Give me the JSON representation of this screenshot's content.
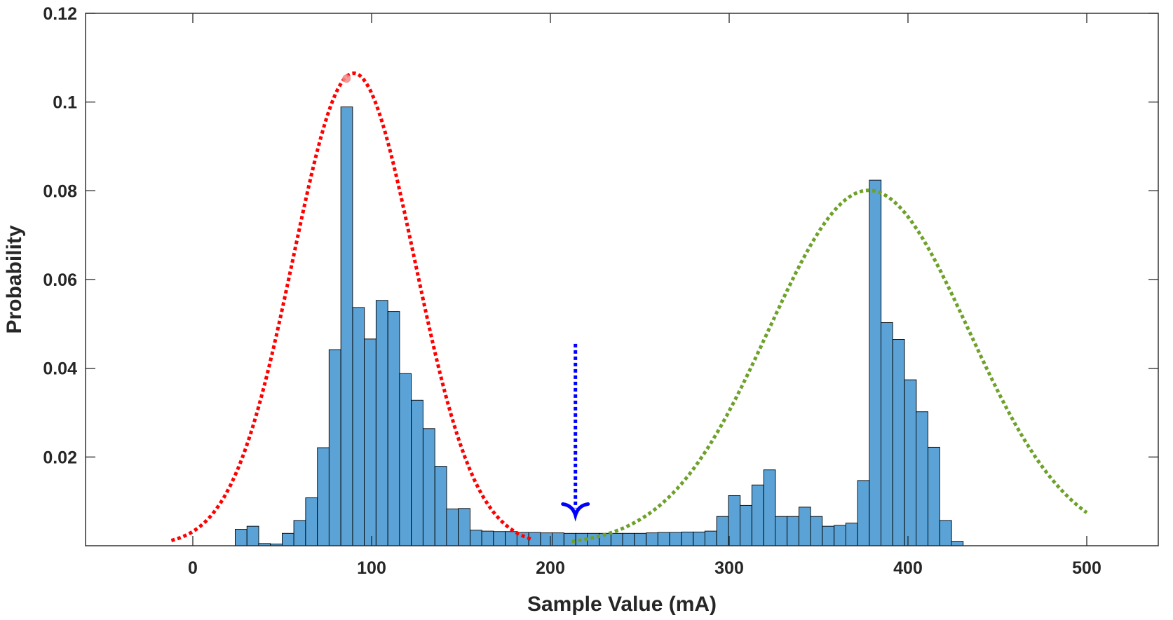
{
  "chart_data": {
    "type": "bar",
    "title": "",
    "xlabel": "Sample Value (mA)",
    "ylabel": "Probability",
    "xlim": [
      -60,
      540
    ],
    "ylim": [
      0,
      0.12
    ],
    "grid": false,
    "xticks": [
      0,
      100,
      200,
      300,
      400,
      500
    ],
    "xtick_labels": [
      "0",
      "100",
      "200",
      "300",
      "400",
      "500"
    ],
    "yticks": [
      0.02,
      0.04,
      0.06,
      0.08,
      0.1,
      0.12
    ],
    "ytick_labels": [
      "0.02",
      "0.04",
      "0.06",
      "0.08",
      "0.1",
      "0.12"
    ],
    "histogram": {
      "name": "Sample histogram",
      "color": "#5ba3d6",
      "edge_color": "#000000",
      "bin_width": 6.57,
      "bin_starts": [
        23.7,
        30.3,
        36.8,
        43.4,
        50.0,
        56.5,
        63.1,
        69.7,
        76.2,
        82.8,
        89.4,
        95.9,
        102.5,
        109.1,
        115.6,
        122.2,
        128.8,
        135.4,
        141.9,
        148.5,
        155.1,
        161.6,
        168.2,
        174.8,
        181.3,
        187.9,
        194.5,
        201.0,
        207.6,
        214.2,
        220.7,
        227.3,
        233.9,
        240.4,
        247.0,
        253.6,
        260.1,
        266.7,
        273.3,
        279.9,
        286.4,
        293.0,
        299.6,
        306.1,
        312.7,
        319.3,
        325.8,
        332.4,
        339.0,
        345.5,
        352.1,
        358.7,
        365.2,
        371.8,
        378.4,
        384.9,
        391.5,
        398.1,
        404.6,
        411.2,
        417.8,
        424.3
      ],
      "values": [
        0.0037,
        0.0044,
        0.0005,
        0.0004,
        0.0028,
        0.0057,
        0.0108,
        0.0221,
        0.0442,
        0.0989,
        0.0537,
        0.0466,
        0.0553,
        0.0528,
        0.0388,
        0.0328,
        0.0264,
        0.0179,
        0.0083,
        0.0084,
        0.0035,
        0.0033,
        0.0032,
        0.0032,
        0.003,
        0.003,
        0.0029,
        0.0029,
        0.0028,
        0.0028,
        0.0028,
        0.0028,
        0.0028,
        0.0028,
        0.0028,
        0.0029,
        0.003,
        0.003,
        0.0031,
        0.0031,
        0.0033,
        0.0066,
        0.0113,
        0.0091,
        0.0137,
        0.0171,
        0.0066,
        0.0066,
        0.0087,
        0.0066,
        0.0044,
        0.0046,
        0.0051,
        0.0147,
        0.0824,
        0.0503,
        0.0465,
        0.0374,
        0.0302,
        0.0222,
        0.0057,
        0.001
      ]
    },
    "fits": [
      {
        "name": "Gaussian fit 1",
        "style": "dotted",
        "color": "#ff0000",
        "mean": 90,
        "sigma": 34,
        "peak": 0.1065,
        "x_range": [
          -12,
          190
        ]
      },
      {
        "name": "Gaussian fit 2",
        "style": "dotted",
        "color": "#6ea12a",
        "mean": 378,
        "sigma": 56,
        "peak": 0.0801,
        "x_range": [
          212,
          500
        ]
      }
    ],
    "annotations": [
      {
        "type": "arrow",
        "name": "threshold marker",
        "color": "#0000ff",
        "x": 214,
        "y_start": 0.0455,
        "y_end": 0.0075
      },
      {
        "type": "marker",
        "name": "peak marker",
        "color": "#f28a8a",
        "x": 86,
        "y": 0.1053
      }
    ]
  }
}
